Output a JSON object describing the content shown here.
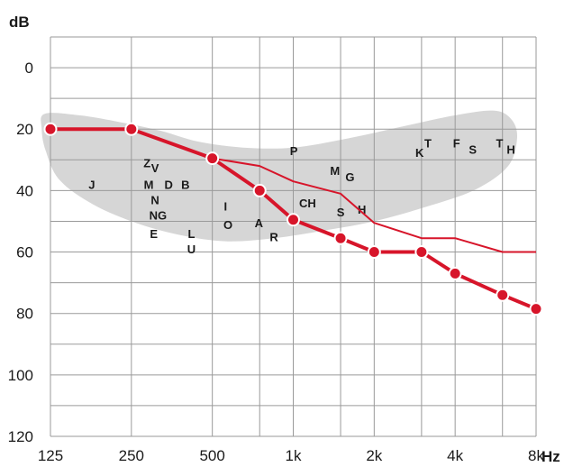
{
  "chart_data": {
    "type": "line",
    "title": "",
    "ylabel": "dB",
    "xlabel": "Hz",
    "x_scale": "log",
    "y_inverted": true,
    "ylim": [
      0,
      120
    ],
    "x_ticks": [
      {
        "f": 125,
        "label": "125"
      },
      {
        "f": 250,
        "label": "250"
      },
      {
        "f": 500,
        "label": "500"
      },
      {
        "f": 750,
        "label": ""
      },
      {
        "f": 1000,
        "label": "1k"
      },
      {
        "f": 1500,
        "label": ""
      },
      {
        "f": 2000,
        "label": "2k"
      },
      {
        "f": 3000,
        "label": ""
      },
      {
        "f": 4000,
        "label": "4k"
      },
      {
        "f": 6000,
        "label": ""
      },
      {
        "f": 8000,
        "label": "8k"
      }
    ],
    "y_ticks": [
      {
        "v": 0,
        "label": "0"
      },
      {
        "v": 10,
        "label": ""
      },
      {
        "v": 20,
        "label": "20"
      },
      {
        "v": 30,
        "label": ""
      },
      {
        "v": 40,
        "label": "40"
      },
      {
        "v": 50,
        "label": ""
      },
      {
        "v": 60,
        "label": "60"
      },
      {
        "v": 70,
        "label": ""
      },
      {
        "v": 80,
        "label": "80"
      },
      {
        "v": 90,
        "label": ""
      },
      {
        "v": 100,
        "label": "100"
      },
      {
        "v": 110,
        "label": ""
      },
      {
        "v": 120,
        "label": "120"
      }
    ],
    "grid": true,
    "colors": {
      "series": "#d7152a",
      "banana": "#d6d6d6",
      "grid": "#9a9a9a"
    },
    "series": [
      {
        "marker": "circle",
        "points": [
          {
            "x": 125,
            "y": 20
          },
          {
            "x": 250,
            "y": 20
          },
          {
            "x": 500,
            "y": 29.5
          },
          {
            "x": 750,
            "y": 40
          },
          {
            "x": 1000,
            "y": 49.5
          },
          {
            "x": 1500,
            "y": 55.5
          },
          {
            "x": 2000,
            "y": 60
          },
          {
            "x": 3000,
            "y": 60
          },
          {
            "x": 4000,
            "y": 67
          },
          {
            "x": 6000,
            "y": 74
          },
          {
            "x": 8000,
            "y": 78.5
          }
        ]
      },
      {
        "marker": "none",
        "points": [
          {
            "x": 500,
            "y": 29.5
          },
          {
            "x": 750,
            "y": 32
          },
          {
            "x": 1000,
            "y": 37
          },
          {
            "x": 1500,
            "y": 41
          },
          {
            "x": 2000,
            "y": 50.5
          },
          {
            "x": 3000,
            "y": 55.5
          },
          {
            "x": 4000,
            "y": 55.5
          },
          {
            "x": 6000,
            "y": 60
          },
          {
            "x": 8000,
            "y": 60
          }
        ]
      }
    ],
    "speech_banana": {
      "outline": [
        {
          "x": 119,
          "y": 15
        },
        {
          "x": 160,
          "y": 15.5
        },
        {
          "x": 220,
          "y": 17.5
        },
        {
          "x": 320,
          "y": 20.5
        },
        {
          "x": 440,
          "y": 24
        },
        {
          "x": 650,
          "y": 26
        },
        {
          "x": 1000,
          "y": 26
        },
        {
          "x": 1600,
          "y": 23
        },
        {
          "x": 2600,
          "y": 19
        },
        {
          "x": 4000,
          "y": 15.5
        },
        {
          "x": 5600,
          "y": 14
        },
        {
          "x": 6500,
          "y": 17
        },
        {
          "x": 6800,
          "y": 23
        },
        {
          "x": 6300,
          "y": 32
        },
        {
          "x": 4800,
          "y": 39.5
        },
        {
          "x": 3200,
          "y": 45
        },
        {
          "x": 2000,
          "y": 50
        },
        {
          "x": 1300,
          "y": 53
        },
        {
          "x": 850,
          "y": 55.5
        },
        {
          "x": 560,
          "y": 56.5
        },
        {
          "x": 380,
          "y": 54.5
        },
        {
          "x": 260,
          "y": 50.5
        },
        {
          "x": 180,
          "y": 44.5
        },
        {
          "x": 135,
          "y": 36.5
        },
        {
          "x": 120,
          "y": 27
        },
        {
          "x": 116,
          "y": 20
        }
      ]
    },
    "speech_sounds": [
      {
        "label": "J",
        "x": 178,
        "y": 38
      },
      {
        "label": "Z",
        "x": 286,
        "y": 31
      },
      {
        "label": "V",
        "x": 306,
        "y": 32.5
      },
      {
        "label": "M",
        "x": 290,
        "y": 38
      },
      {
        "label": "D",
        "x": 344,
        "y": 38
      },
      {
        "label": "B",
        "x": 397,
        "y": 38
      },
      {
        "label": "N",
        "x": 306,
        "y": 43
      },
      {
        "label": "NG",
        "x": 314,
        "y": 48
      },
      {
        "label": "E",
        "x": 303,
        "y": 54
      },
      {
        "label": "L",
        "x": 418,
        "y": 54
      },
      {
        "label": "U",
        "x": 418,
        "y": 59
      },
      {
        "label": "I",
        "x": 560,
        "y": 45
      },
      {
        "label": "O",
        "x": 572,
        "y": 51
      },
      {
        "label": "A",
        "x": 745,
        "y": 50.5
      },
      {
        "label": "R",
        "x": 848,
        "y": 55
      },
      {
        "label": "P",
        "x": 1005,
        "y": 27
      },
      {
        "label": "M",
        "x": 1430,
        "y": 33.5
      },
      {
        "label": "G",
        "x": 1625,
        "y": 35.5
      },
      {
        "label": "CH",
        "x": 1130,
        "y": 44
      },
      {
        "label": "S",
        "x": 1500,
        "y": 47
      },
      {
        "label": "H",
        "x": 1800,
        "y": 46
      },
      {
        "label": "K",
        "x": 2950,
        "y": 27.5
      },
      {
        "label": "T",
        "x": 3170,
        "y": 24.5
      },
      {
        "label": "F",
        "x": 4050,
        "y": 24.5
      },
      {
        "label": "S",
        "x": 4650,
        "y": 26.5
      },
      {
        "label": "T",
        "x": 5850,
        "y": 24.5
      },
      {
        "label": "H",
        "x": 6450,
        "y": 26.5
      }
    ]
  }
}
